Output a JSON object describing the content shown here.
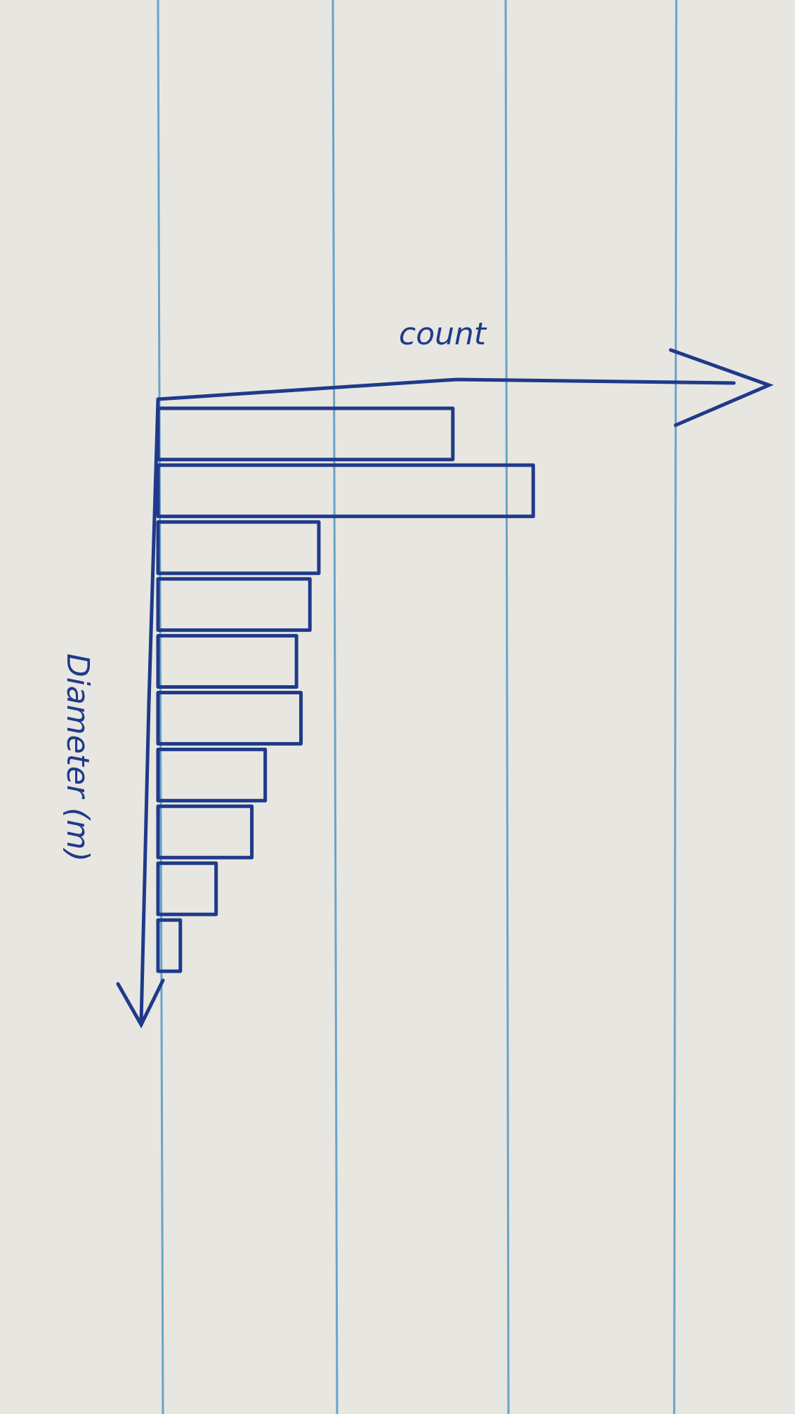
{
  "chart_data": {
    "type": "bar",
    "orientation": "horizontal",
    "xlabel": "count",
    "ylabel": "Diameter (m)",
    "categories": [
      null,
      null,
      null,
      null,
      null,
      null,
      null,
      null,
      null,
      null
    ],
    "values": [
      33,
      42,
      18,
      17,
      15.5,
      16,
      12,
      10.5,
      6.5,
      2.5
    ],
    "xlim": [
      0,
      68
    ],
    "color": "#1f3a8a"
  }
}
